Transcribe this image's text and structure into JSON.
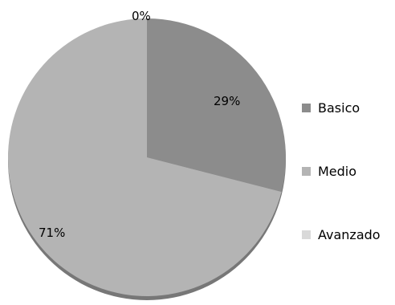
{
  "chart_data": {
    "type": "pie",
    "title": "",
    "slices": [
      {
        "label": "Basico",
        "value": 29,
        "display": "29%",
        "color": "#8c8c8c"
      },
      {
        "label": "Medio",
        "value": 71,
        "display": "71%",
        "color": "#b4b4b4"
      },
      {
        "label": "Avanzado",
        "value": 0,
        "display": "0%",
        "color": "#d9d9d9"
      }
    ],
    "start_angle_deg": 0,
    "direction": "clockwise",
    "legend_position": "right",
    "shadow_color": "#777777"
  }
}
